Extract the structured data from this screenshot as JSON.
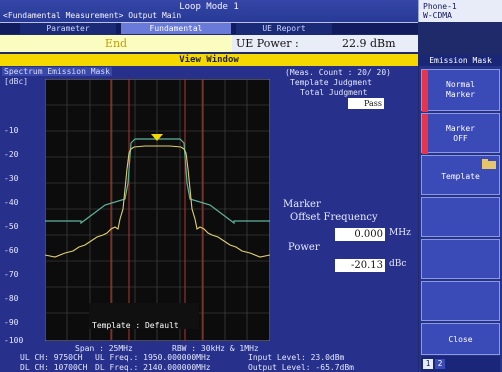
{
  "window": {
    "mode_title": "Loop Mode 1",
    "breadcrumb": "<Fundamental Measurement> Output Main",
    "phone": {
      "line1": "Phone-1",
      "line2": "W-CDMA"
    }
  },
  "tabs": [
    {
      "label": "Parameter",
      "active": false
    },
    {
      "label": "Fundamental",
      "active": true
    },
    {
      "label": "UE Report",
      "active": false
    }
  ],
  "status": {
    "state": "End",
    "ue_power_label": "UE Power :",
    "ue_power_value": "22.9 dBm"
  },
  "view_window_label": "View Window",
  "plot": {
    "title": "Spectrum Emission Mask",
    "unit": "[dBc]",
    "y_ticks": [
      "-10",
      "-20",
      "-30",
      "-40",
      "-50",
      "-60",
      "-70",
      "-80",
      "-90",
      "-100"
    ],
    "template_label": "Template : Default",
    "span": "Span : 25MHz",
    "rbw": "RBW : 30kHz & 1MHz"
  },
  "measurement": {
    "meas_count": "(Meas. Count :   20/  20)",
    "template_judgment": "Template Judgment",
    "total_judgment": "Total Judgment",
    "judgment_value": "Pass",
    "marker_label": "Marker",
    "offset_label": "Offset Frequency",
    "offset_value": "0.000",
    "offset_unit": "MHz",
    "power_label": "Power",
    "power_value": "-20.13",
    "power_unit": "dBc"
  },
  "info": {
    "ul_ch": "UL CH:  9750CH",
    "ul_freq": "UL Freq.: 1950.000000MHz",
    "input_level": "Input Level:     23.0dBm",
    "dl_ch": "DL CH: 10700CH",
    "dl_freq": "DL Freq.: 2140.000000MHz",
    "output_level": "Output Level:   -65.7dBm"
  },
  "sidebar": {
    "header": "Emission Mask",
    "softkeys": [
      {
        "label1": "Normal",
        "label2": "Marker",
        "marked": true
      },
      {
        "label1": "Marker",
        "label2": "OFF",
        "marked": true
      },
      {
        "label1": "Template",
        "label2": "",
        "marked": false
      },
      {
        "label1": "",
        "label2": "",
        "marked": false
      },
      {
        "label1": "",
        "label2": "",
        "marked": false
      },
      {
        "label1": "",
        "label2": "",
        "marked": false
      },
      {
        "label1": "Close",
        "label2": "",
        "marked": false
      }
    ],
    "pages": [
      "1",
      "2"
    ]
  },
  "colors": {
    "trace": "#e0cf72",
    "template": "#5fb39c",
    "marker_line": "#c0362c",
    "grid": "#5a5a5a"
  }
}
